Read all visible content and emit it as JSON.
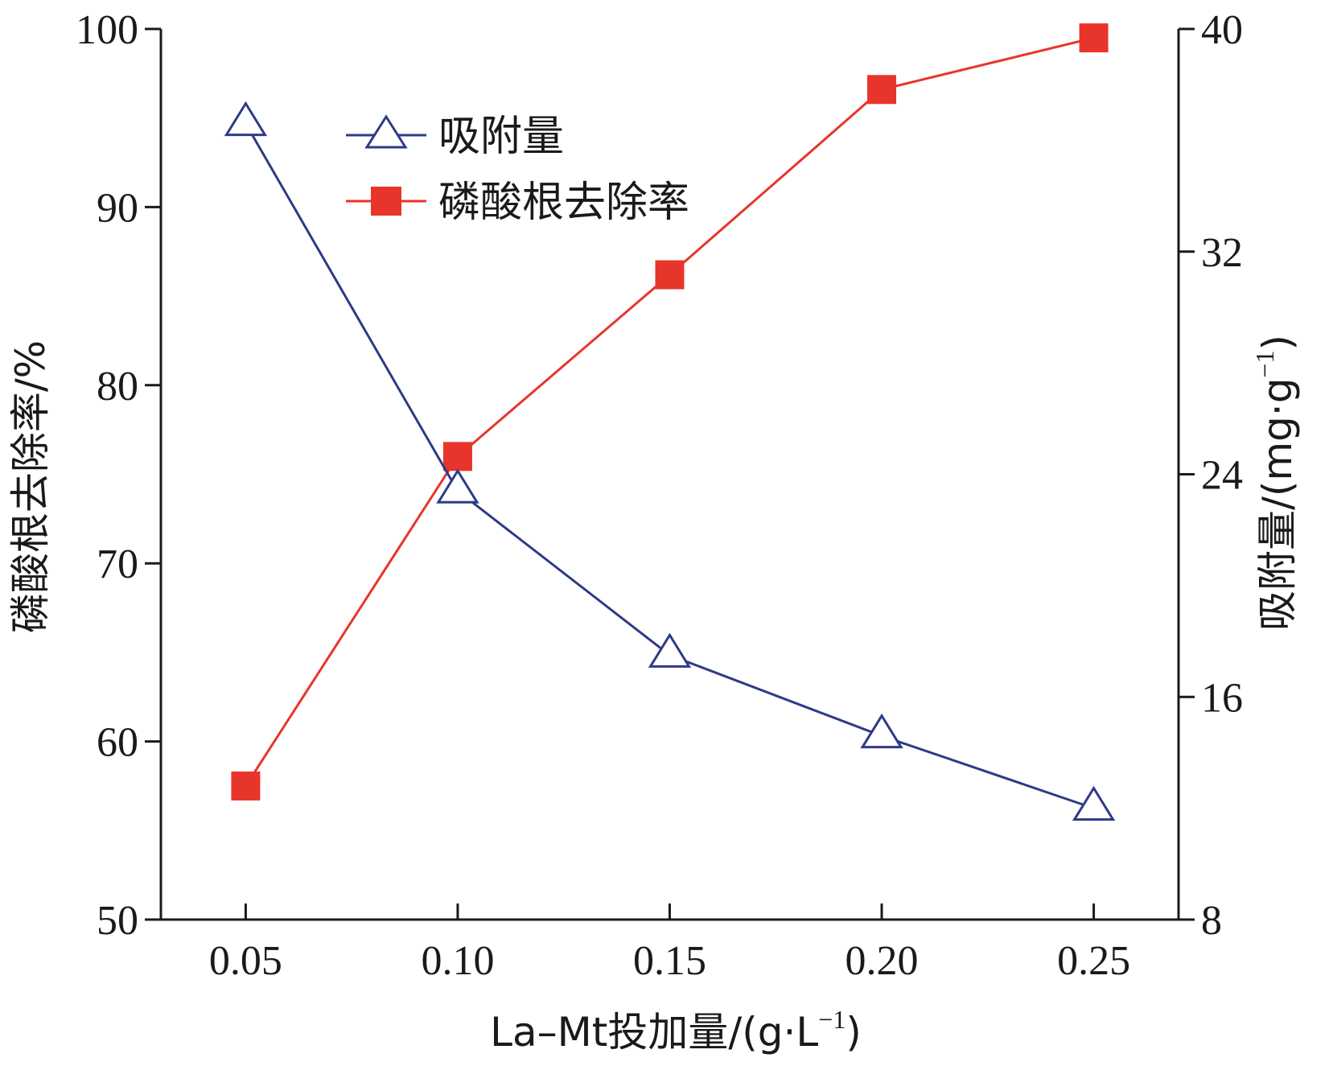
{
  "chart_data": {
    "type": "line",
    "x": [
      0.05,
      0.1,
      0.15,
      0.2,
      0.25
    ],
    "x_tick_labels": [
      "0.05",
      "0.10",
      "0.15",
      "0.20",
      "0.25"
    ],
    "xlim": [
      0.03,
      0.27
    ],
    "xlabel": "La–Mt投加量/(g·L",
    "xlabel_sup": "−1",
    "xlabel_tail": ")",
    "y_left": {
      "label": "磷酸根去除率/%",
      "lim": [
        50,
        100
      ],
      "ticks": [
        50,
        60,
        70,
        80,
        90,
        100
      ]
    },
    "y_right": {
      "label": "吸附量/(mg·g",
      "label_sup": "−1",
      "label_tail": ")",
      "lim": [
        8,
        40
      ],
      "ticks": [
        8,
        16,
        24,
        32,
        40
      ]
    },
    "series": [
      {
        "name": "吸附量",
        "axis": "right",
        "marker": "triangle-open",
        "color": "#2e3a87",
        "values": [
          36.6,
          23.4,
          17.5,
          14.6,
          12.0
        ]
      },
      {
        "name": "磷酸根去除率",
        "axis": "left",
        "marker": "square-filled",
        "color": "#e8352b",
        "values": [
          57.5,
          76.0,
          86.2,
          96.6,
          99.5
        ]
      }
    ],
    "legend_position": "top-left",
    "grid": false
  }
}
